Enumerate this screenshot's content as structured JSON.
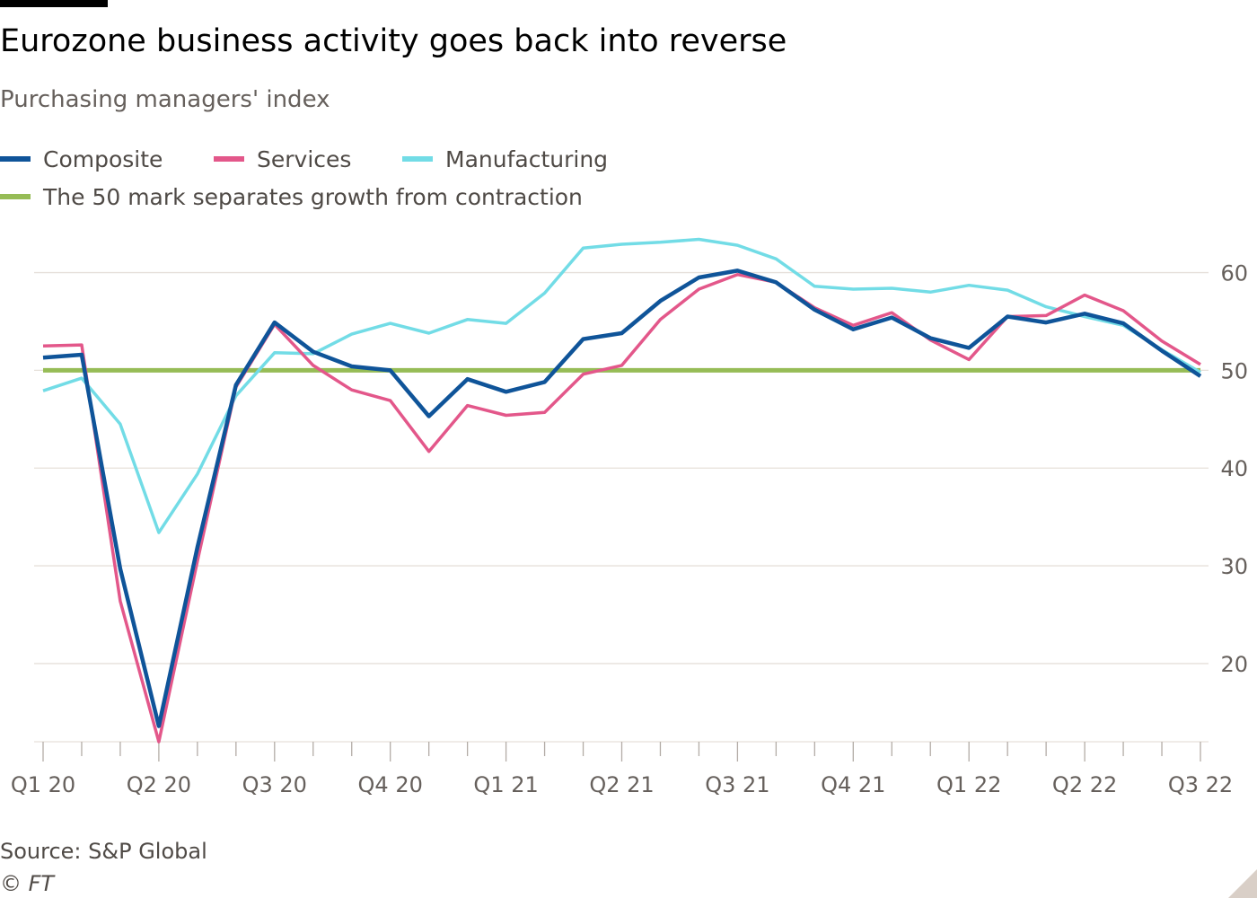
{
  "header": {
    "title": "Eurozone business activity goes back into reverse",
    "subtitle": "Purchasing managers' index"
  },
  "legend": {
    "composite": "Composite",
    "services": "Services",
    "manufacturing": "Manufacturing",
    "threshold": "The 50 mark separates growth from contraction"
  },
  "footer": {
    "source": "Source: S&P Global",
    "credit": "© FT"
  },
  "colors": {
    "composite": "#0f5499",
    "services": "#e3578a",
    "manufacturing": "#72dce6",
    "threshold": "#96bc56",
    "grid": "#e6e0da",
    "axis_text": "#66605c"
  },
  "chart_data": {
    "type": "line",
    "title": "Eurozone business activity goes back into reverse",
    "subtitle": "Purchasing managers' index",
    "x": [
      "Jan 20",
      "Feb 20",
      "Mar 20",
      "Apr 20",
      "May 20",
      "Jun 20",
      "Jul 20",
      "Aug 20",
      "Sep 20",
      "Oct 20",
      "Nov 20",
      "Dec 20",
      "Jan 21",
      "Feb 21",
      "Mar 21",
      "Apr 21",
      "May 21",
      "Jun 21",
      "Jul 21",
      "Aug 21",
      "Sep 21",
      "Oct 21",
      "Nov 21",
      "Dec 21",
      "Jan 22",
      "Feb 22",
      "Mar 22",
      "Apr 22",
      "May 22",
      "Jun 22",
      "Jul 22"
    ],
    "tick_labels": [
      "Q1 20",
      "Q2 20",
      "Q3 20",
      "Q4 20",
      "Q1 21",
      "Q2 21",
      "Q3 21",
      "Q4 21",
      "Q1 22",
      "Q2 22",
      "Q3 22"
    ],
    "tick_positions": [
      0,
      3,
      6,
      9,
      12,
      15,
      18,
      21,
      24,
      27,
      30
    ],
    "ylim": [
      12,
      64
    ],
    "yticks": [
      20,
      30,
      40,
      50,
      60
    ],
    "y_axis_side": "right",
    "grid": true,
    "legend_position": "top-left",
    "series": [
      {
        "name": "Composite",
        "color": "#0f5499",
        "values": [
          51.3,
          51.6,
          29.7,
          13.6,
          31.9,
          48.5,
          54.9,
          51.9,
          50.4,
          50.0,
          45.3,
          49.1,
          47.8,
          48.8,
          53.2,
          53.8,
          57.1,
          59.5,
          60.2,
          59.0,
          56.2,
          54.2,
          55.4,
          53.3,
          52.3,
          55.5,
          54.9,
          55.8,
          54.8,
          52.0,
          49.4
        ]
      },
      {
        "name": "Services",
        "color": "#e3578a",
        "values": [
          52.5,
          52.6,
          26.4,
          12.0,
          30.5,
          48.3,
          54.7,
          50.5,
          48.0,
          46.9,
          41.7,
          46.4,
          45.4,
          45.7,
          49.6,
          50.5,
          55.2,
          58.3,
          59.8,
          59.0,
          56.4,
          54.6,
          55.9,
          53.1,
          51.1,
          55.5,
          55.6,
          57.7,
          56.1,
          53.0,
          50.6
        ]
      },
      {
        "name": "Manufacturing",
        "color": "#72dce6",
        "values": [
          47.9,
          49.2,
          44.5,
          33.4,
          39.4,
          47.4,
          51.8,
          51.7,
          53.7,
          54.8,
          53.8,
          55.2,
          54.8,
          57.9,
          62.5,
          62.9,
          63.1,
          63.4,
          62.8,
          61.4,
          58.6,
          58.3,
          58.4,
          58.0,
          58.7,
          58.2,
          56.5,
          55.5,
          54.6,
          52.1,
          49.8
        ]
      },
      {
        "name": "The 50 mark separates growth from contraction",
        "color": "#96bc56",
        "values": [
          50,
          50,
          50,
          50,
          50,
          50,
          50,
          50,
          50,
          50,
          50,
          50,
          50,
          50,
          50,
          50,
          50,
          50,
          50,
          50,
          50,
          50,
          50,
          50,
          50,
          50,
          50,
          50,
          50,
          50,
          50
        ]
      }
    ]
  }
}
